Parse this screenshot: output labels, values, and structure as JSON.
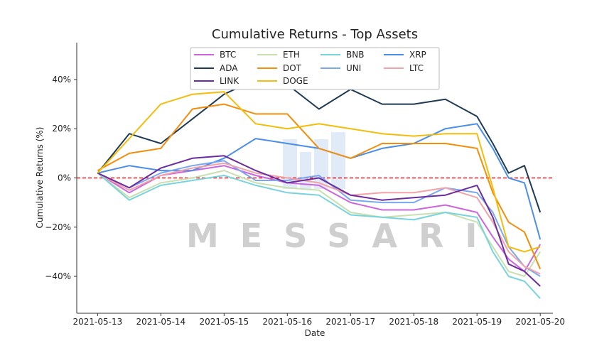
{
  "chart_data": {
    "type": "line",
    "title": "Cumulative Returns - Top Assets",
    "xlabel": "Date",
    "ylabel": "Cumulative Returns (%)",
    "x_ticks": [
      "2021-05-13",
      "2021-05-14",
      "2021-05-15",
      "2021-05-16",
      "2021-05-17",
      "2021-05-18",
      "2021-05-19",
      "2021-05-20"
    ],
    "xlim": [
      -0.33,
      7.2
    ],
    "ylim": [
      -55,
      55
    ],
    "y_ticks": [
      -40,
      -20,
      0,
      20,
      40
    ],
    "y_tick_labels": [
      "−40%",
      "−20%",
      "0%",
      "20%",
      "40%"
    ],
    "reference_line": {
      "y": 0,
      "color": "#e41a1c",
      "style": "dashed"
    },
    "legend": {
      "position": "top-center",
      "columns": 4
    },
    "watermark": "MESSARI",
    "x": [
      "2021-05-13",
      "2021-05-13 12:00",
      "2021-05-14",
      "2021-05-14 12:00",
      "2021-05-15",
      "2021-05-15 12:00",
      "2021-05-16",
      "2021-05-16 12:00",
      "2021-05-17",
      "2021-05-17 12:00",
      "2021-05-18",
      "2021-05-18 12:00",
      "2021-05-19",
      "2021-05-19 06:00",
      "2021-05-19 12:00",
      "2021-05-19 18:00",
      "2021-05-20"
    ],
    "series": [
      {
        "name": "BTC",
        "color": "#cc66dd",
        "values": [
          2,
          -6,
          1,
          3,
          5,
          1,
          -2,
          -3,
          -10,
          -13,
          -13,
          -11,
          -14,
          -24,
          -33,
          -38,
          -27
        ]
      },
      {
        "name": "ETH",
        "color": "#c8dfb0",
        "values": [
          2,
          -8,
          -2,
          0,
          3,
          -2,
          -4,
          -5,
          -14,
          -16,
          -15,
          -14,
          -18,
          -28,
          -38,
          -40,
          -30
        ]
      },
      {
        "name": "BNB",
        "color": "#79d3dd",
        "values": [
          2,
          -9,
          -3,
          -1,
          1,
          -3,
          -6,
          -7,
          -15,
          -16,
          -17,
          -14,
          -16,
          -30,
          -40,
          -42,
          -49
        ]
      },
      {
        "name": "XRP",
        "color": "#4b8ee8",
        "values": [
          2,
          5,
          3,
          3,
          8,
          16,
          14,
          12,
          8,
          12,
          14,
          20,
          22,
          12,
          0,
          -2,
          -25
        ]
      },
      {
        "name": "ADA",
        "color": "#1f3b54",
        "values": [
          2,
          18,
          14,
          24,
          34,
          40,
          38,
          28,
          36,
          30,
          30,
          32,
          25,
          14,
          2,
          5,
          -14
        ]
      },
      {
        "name": "DOT",
        "color": "#f28e0c",
        "values": [
          3,
          10,
          12,
          28,
          30,
          26,
          26,
          12,
          8,
          14,
          14,
          14,
          12,
          -6,
          -18,
          -22,
          -37
        ]
      },
      {
        "name": "UNI",
        "color": "#7aa8f0",
        "values": [
          2,
          -4,
          2,
          5,
          7,
          -1,
          -1,
          1,
          -9,
          -10,
          -10,
          -4,
          -6,
          -14,
          -28,
          -36,
          -40
        ]
      },
      {
        "name": "LTC",
        "color": "#f3a3a8",
        "values": [
          2,
          -5,
          1,
          4,
          6,
          2,
          0,
          -2,
          -7,
          -6,
          -6,
          -4,
          -8,
          -18,
          -30,
          -36,
          -39
        ]
      },
      {
        "name": "LINK",
        "color": "#6a2c9e",
        "values": [
          2,
          -4,
          4,
          8,
          9,
          3,
          -2,
          0,
          -7,
          -9,
          -8,
          -7,
          -3,
          -16,
          -35,
          -38,
          -44
        ]
      },
      {
        "name": "DOGE",
        "color": "#f2bd0c",
        "values": [
          2,
          16,
          30,
          34,
          35,
          22,
          20,
          22,
          20,
          18,
          17,
          18,
          18,
          -4,
          -28,
          -30,
          -28
        ]
      }
    ]
  }
}
